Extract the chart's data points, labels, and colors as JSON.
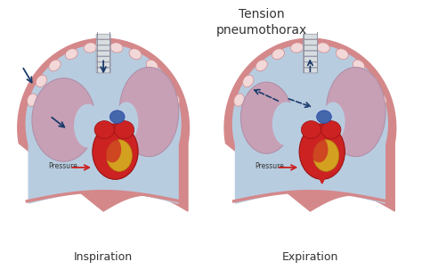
{
  "title": "Tension\npneumothorax",
  "label_left": "Inspiration",
  "label_right": "Expiration",
  "pressure_label": "Pressure",
  "bg_color": "#ffffff",
  "chest_wall_color": "#d4888a",
  "chest_inner_color": "#b8cce0",
  "lung_color": "#c8a0b5",
  "rib_fill": "#f2d8d8",
  "rib_edge": "#d4888a",
  "heart_red": "#cc2222",
  "heart_gold": "#d4a020",
  "heart_blue": "#4466aa",
  "trachea_color": "#b0b8c0",
  "arrow_color": "#1a3a6a",
  "pressure_arrow_color": "#cc2222",
  "title_fontsize": 10,
  "label_fontsize": 9
}
